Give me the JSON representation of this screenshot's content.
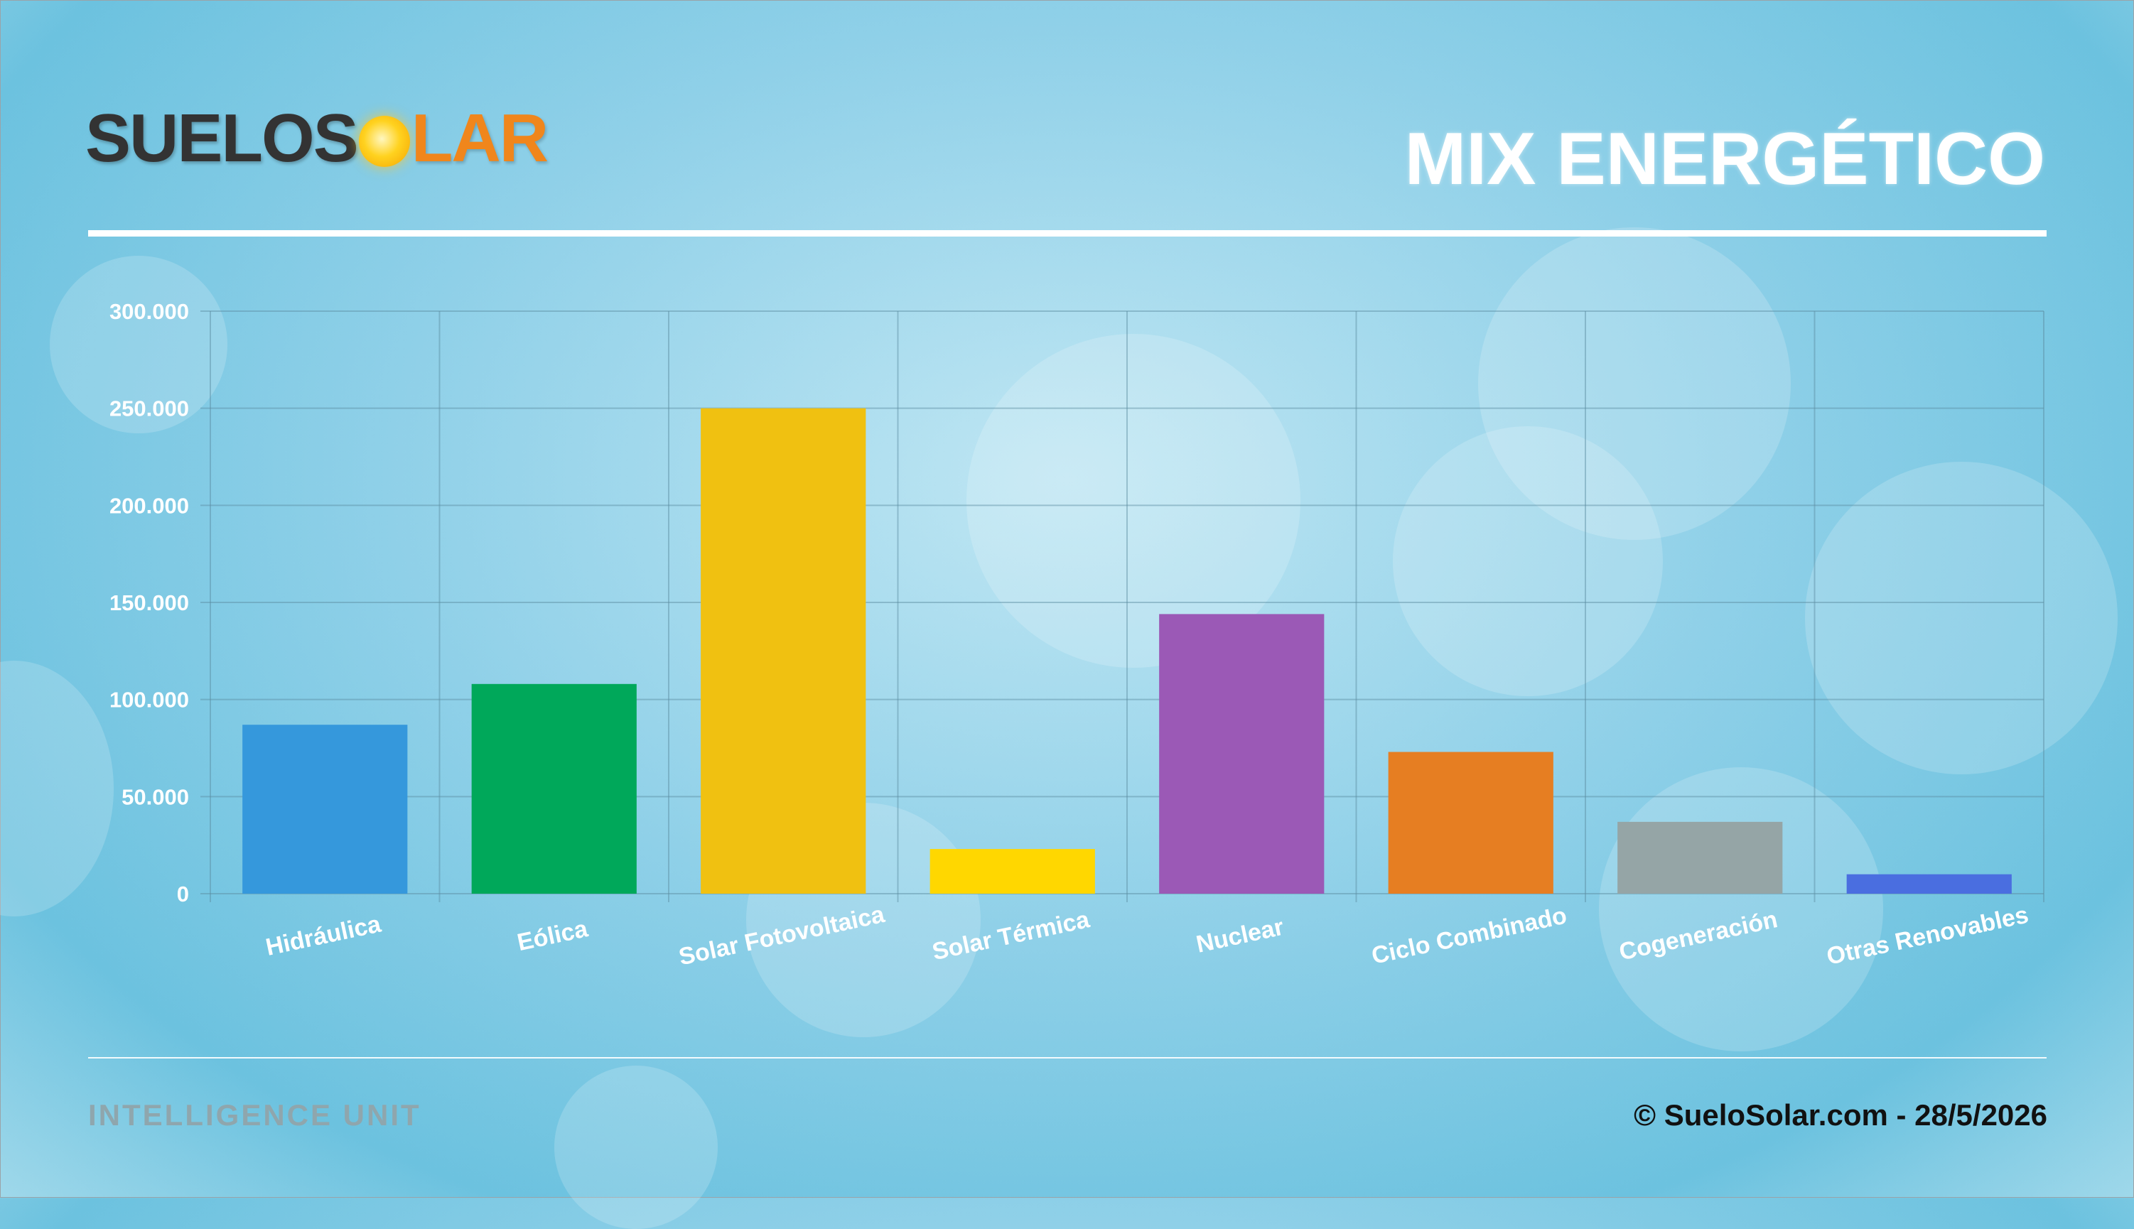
{
  "header": {
    "logo_part1": "SUELOS",
    "logo_part2": "LAR",
    "title": "MIX ENERGÉTICO"
  },
  "footer": {
    "left": "INTELLIGENCE UNIT",
    "right": "© SueloSolar.com - 28/5/2026"
  },
  "chart_data": {
    "type": "bar",
    "title": "MIX ENERGÉTICO",
    "categories": [
      "Hidráulica",
      "Eólica",
      "Solar Fotovoltaica",
      "Solar Térmica",
      "Nuclear",
      "Ciclo Combinado",
      "Cogeneración",
      "Otras Renovables"
    ],
    "values": [
      87000,
      108000,
      250000,
      23000,
      144000,
      73000,
      37000,
      10000
    ],
    "colors": [
      "#3598dc",
      "#00a85a",
      "#f0c111",
      "#ffd700",
      "#9b59b6",
      "#e67e22",
      "#95a5a6",
      "#4a6ee0"
    ],
    "ylim": [
      0,
      300000
    ],
    "yticks": [
      {
        "value": 0,
        "label": "0"
      },
      {
        "value": 50000,
        "label": "50.000"
      },
      {
        "value": 100000,
        "label": "100.000"
      },
      {
        "value": 150000,
        "label": "150.000"
      },
      {
        "value": 200000,
        "label": "200.000"
      },
      {
        "value": 250000,
        "label": "250.000"
      },
      {
        "value": 300000,
        "label": "300.000"
      }
    ],
    "grid": true,
    "legend": "none"
  }
}
